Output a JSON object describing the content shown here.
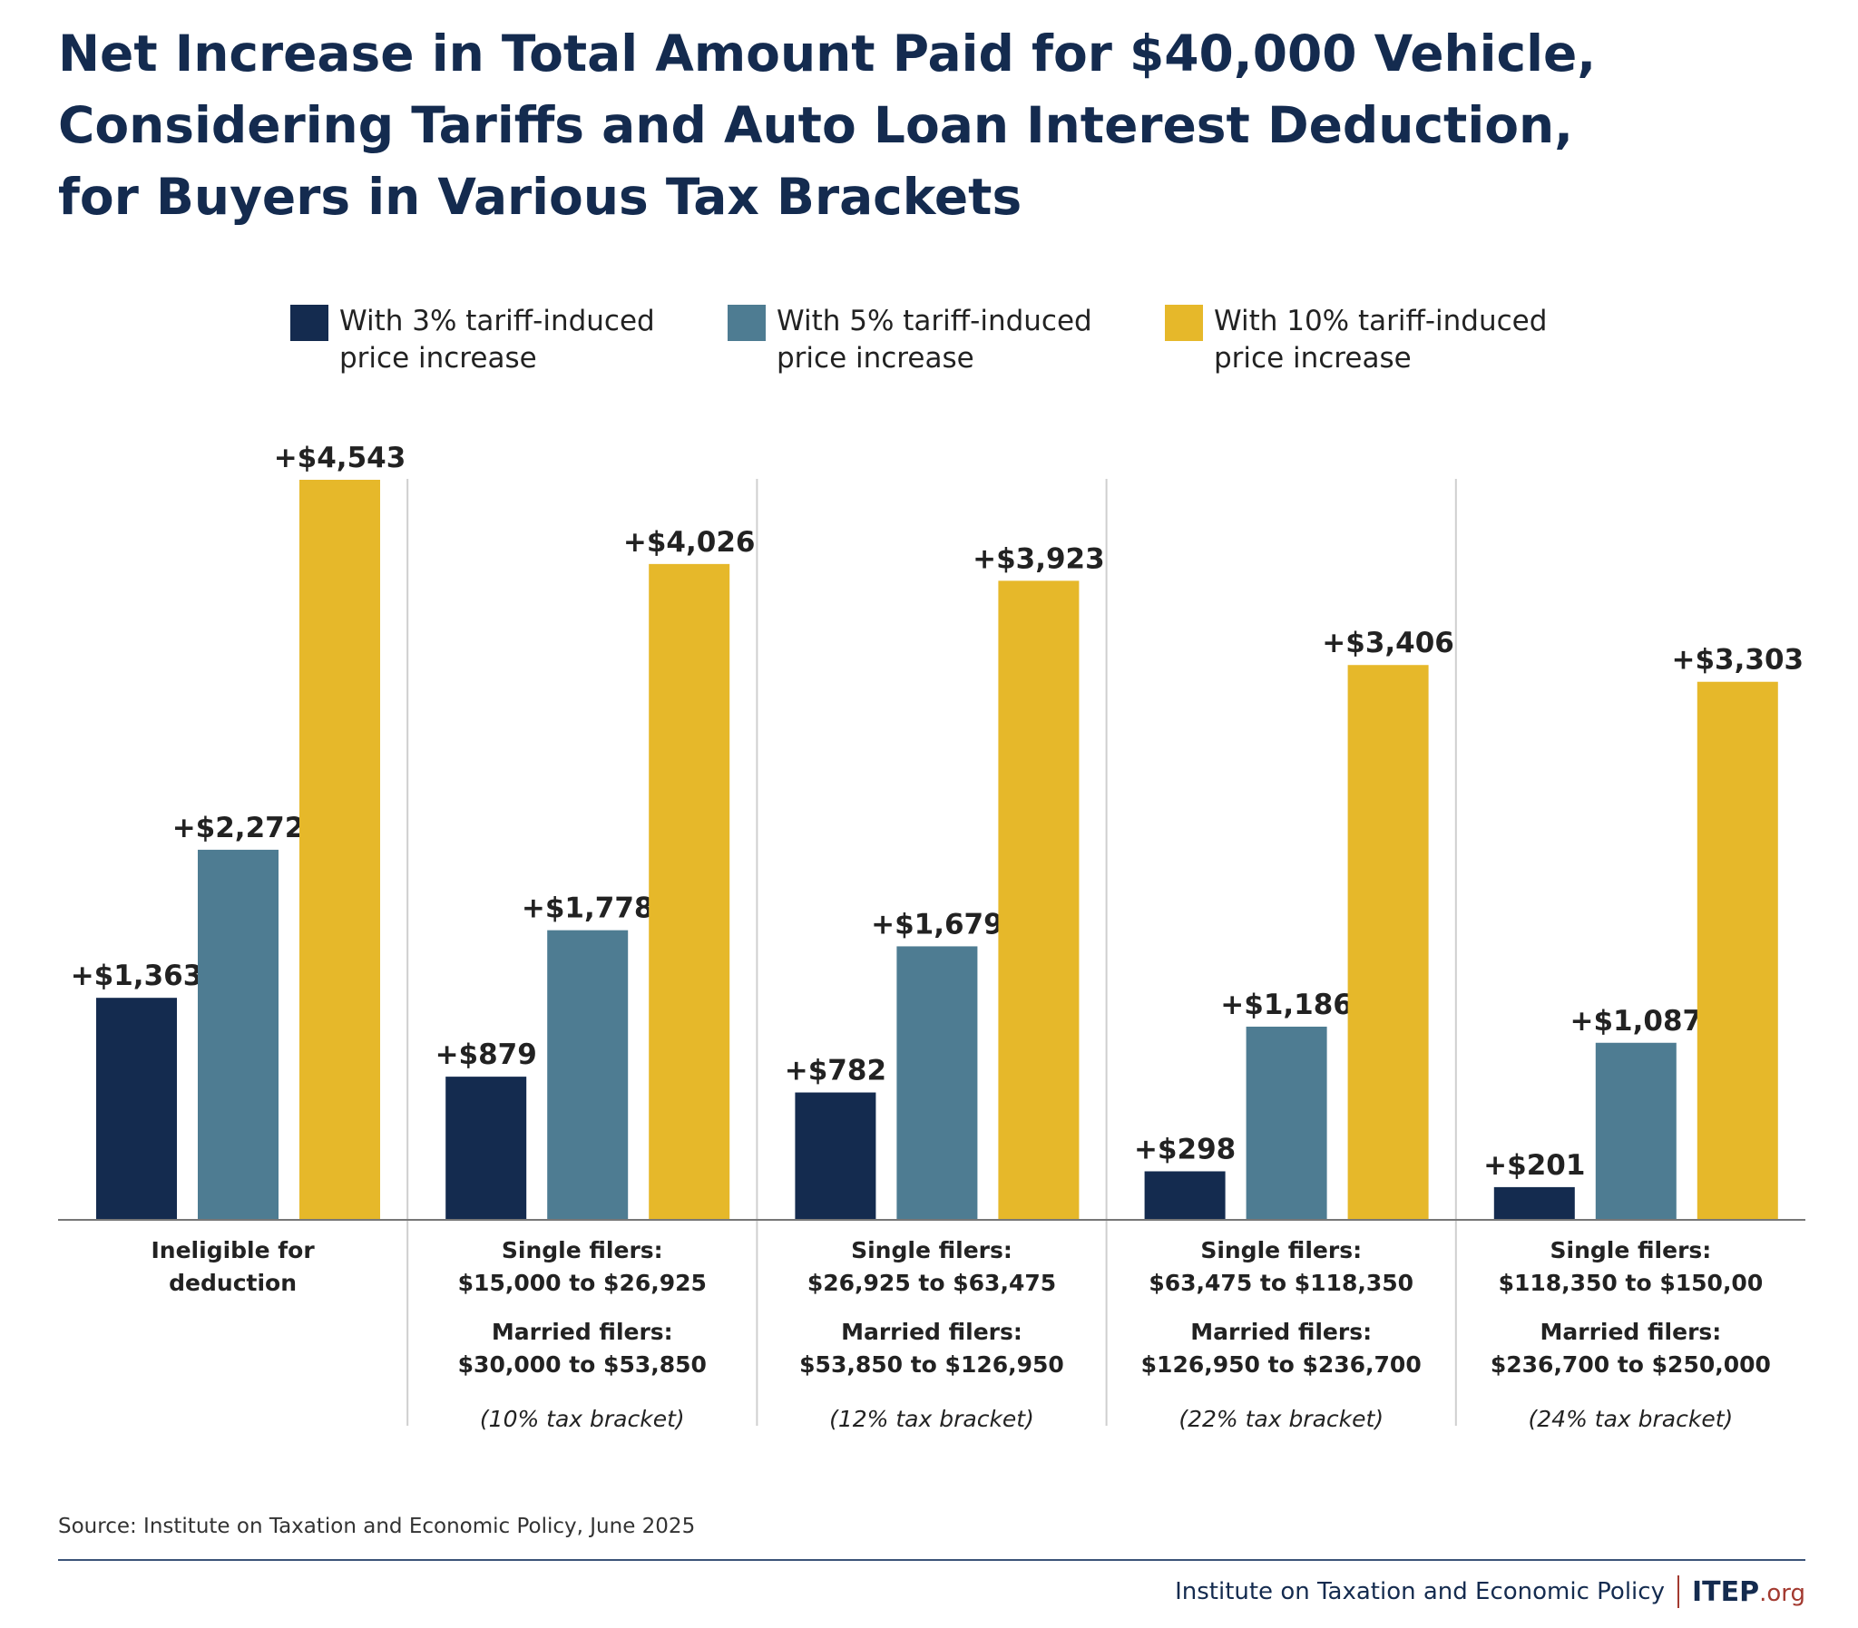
{
  "title_lines": [
    "Net Increase in Total Amount Paid for $40,000 Vehicle,",
    "Considering Tariffs and Auto Loan Interest Deduction,",
    "for Buyers in Various Tax Brackets"
  ],
  "source": "Source: Institute on Taxation and Economic Policy, June 2025",
  "footer": {
    "org_name": "Institute on Taxation and Economic Policy",
    "logo_main": "ITEP",
    "logo_suffix": ".org"
  },
  "chart_data": {
    "type": "bar",
    "title": "Net Increase in Total Amount Paid for $40,000 Vehicle, Considering Tariffs and Auto Loan Interest Deduction, for Buyers in Various Tax Brackets",
    "legend_placement": "top",
    "grid": false,
    "ylim": [
      0,
      4543
    ],
    "categories": [
      {
        "lines": [
          "Ineligible for",
          "deduction"
        ],
        "married": [],
        "bracket": ""
      },
      {
        "lines": [
          "Single filers:",
          "$15,000 to $26,925"
        ],
        "married": [
          "Married filers:",
          "$30,000 to $53,850"
        ],
        "bracket": "(10% tax bracket)"
      },
      {
        "lines": [
          "Single filers:",
          "$26,925 to $63,475"
        ],
        "married": [
          "Married filers:",
          "$53,850 to $126,950"
        ],
        "bracket": "(12% tax bracket)"
      },
      {
        "lines": [
          "Single filers:",
          "$63,475 to $118,350"
        ],
        "married": [
          "Married filers:",
          "$126,950 to $236,700"
        ],
        "bracket": "(22% tax bracket)"
      },
      {
        "lines": [
          "Single filers:",
          "$118,350 to $150,00"
        ],
        "married": [
          "Married filers:",
          "$236,700 to $250,000"
        ],
        "bracket": "(24% tax bracket)"
      }
    ],
    "series": [
      {
        "name": "With 3% tariff-induced price increase",
        "legend_lines": [
          "With 3% tariff-induced",
          "price increase"
        ],
        "color": "#142b4f",
        "values": [
          1363,
          879,
          782,
          298,
          201
        ],
        "labels": [
          "+$1,363",
          "+$879",
          "+$782",
          "+$298",
          "+$201"
        ]
      },
      {
        "name": "With 5% tariff-induced price increase",
        "legend_lines": [
          "With 5% tariff-induced",
          "price increase"
        ],
        "color": "#4e7c92",
        "values": [
          2272,
          1778,
          1679,
          1186,
          1087
        ],
        "labels": [
          "+$2,272",
          "+$1,778",
          "+$1,679",
          "+$1,186",
          "+$1,087"
        ]
      },
      {
        "name": "With 10% tariff-induced price increase",
        "legend_lines": [
          "With 10% tariff-induced",
          "price increase"
        ],
        "color": "#e6b82a",
        "values": [
          4543,
          4026,
          3923,
          3406,
          3303
        ],
        "labels": [
          "+$4,543",
          "+$4,026",
          "+$3,923",
          "+$3,406",
          "+$3,303"
        ]
      }
    ]
  }
}
